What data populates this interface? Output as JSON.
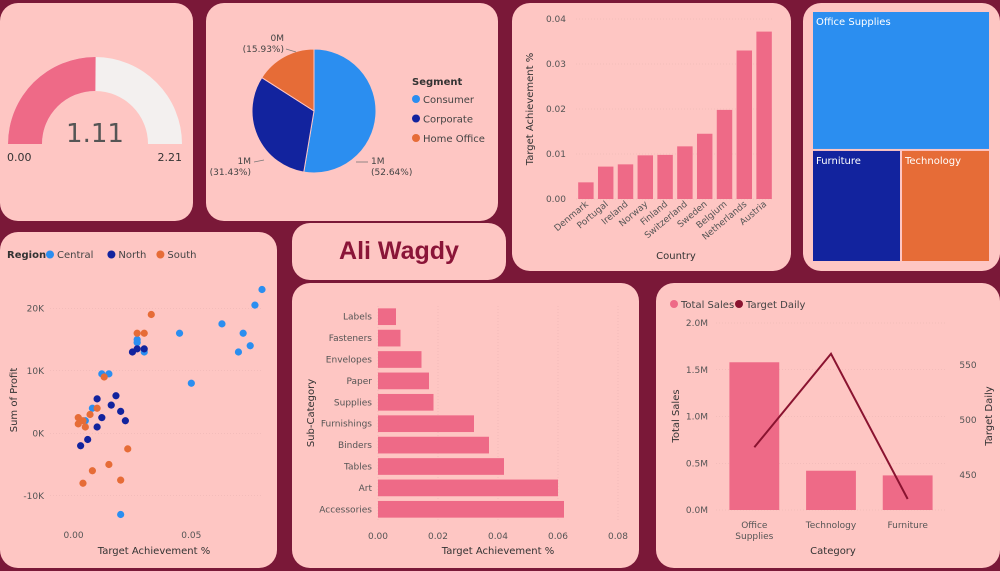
{
  "author": "Ali Wagdy",
  "colors": {
    "bar": "#ee6a87",
    "consumer": "#2b8ef0",
    "corporate": "#12239e",
    "home_office": "#e66c37",
    "line": "#8a1330",
    "central": "#2b8ef0",
    "north": "#12239e",
    "south": "#e66c37"
  },
  "chart_data": [
    {
      "id": "gauge",
      "type": "gauge",
      "value": 1.11,
      "value_label": "1.11",
      "min": 0,
      "max": 2.21,
      "min_label": "0.00",
      "max_label": "2.21"
    },
    {
      "id": "segment_pie",
      "type": "pie",
      "legend_title": "Segment",
      "slices": [
        {
          "name": "Consumer",
          "value": 52.64,
          "label": "1M",
          "pct_label": "(52.64%)"
        },
        {
          "name": "Corporate",
          "value": 31.43,
          "label": "1M",
          "pct_label": "(31.43%)"
        },
        {
          "name": "Home Office",
          "value": 15.93,
          "label": "0M",
          "pct_label": "(15.93%)"
        }
      ]
    },
    {
      "id": "country_bar",
      "type": "bar",
      "xlabel": "Country",
      "ylabel": "Target Achievement %",
      "ylim": [
        0,
        0.04
      ],
      "yticks": [
        "0.00",
        "0.01",
        "0.02",
        "0.03",
        "0.04"
      ],
      "categories": [
        "Denmark",
        "Portugal",
        "Ireland",
        "Norway",
        "Finland",
        "Switzerland",
        "Sweden",
        "Belgium",
        "Netherlands",
        "Austria"
      ],
      "values": [
        0.0037,
        0.0072,
        0.0077,
        0.0097,
        0.0098,
        0.0117,
        0.0145,
        0.0198,
        0.033,
        0.0372
      ]
    },
    {
      "id": "treemap",
      "type": "treemap",
      "items": [
        {
          "name": "Office Supplies",
          "value": 55
        },
        {
          "name": "Furniture",
          "value": 22.5
        },
        {
          "name": "Technology",
          "value": 22.5
        }
      ]
    },
    {
      "id": "region_scatter",
      "type": "scatter",
      "xlabel": "Target Achievement %",
      "ylabel": "Sum of Profit",
      "legend_title": "Region",
      "xlim": [
        -0.01,
        0.08
      ],
      "ylim": [
        -15000,
        25000
      ],
      "xticks": [
        "0.00",
        "0.05"
      ],
      "yticks": [
        "-10K",
        "0K",
        "10K",
        "20K"
      ],
      "series": [
        {
          "name": "Central",
          "points": [
            [
              0.005,
              2000
            ],
            [
              0.008,
              4000
            ],
            [
              0.012,
              9500
            ],
            [
              0.015,
              9500
            ],
            [
              0.027,
              14500
            ],
            [
              0.027,
              15000
            ],
            [
              0.03,
              13000
            ],
            [
              0.045,
              16000
            ],
            [
              0.05,
              8000
            ],
            [
              0.063,
              17500
            ],
            [
              0.07,
              13000
            ],
            [
              0.072,
              16000
            ],
            [
              0.075,
              14000
            ],
            [
              0.077,
              20500
            ],
            [
              0.08,
              23000
            ],
            [
              0.02,
              -13000
            ]
          ]
        },
        {
          "name": "North",
          "points": [
            [
              0.003,
              -2000
            ],
            [
              0.006,
              -1000
            ],
            [
              0.01,
              1000
            ],
            [
              0.012,
              2500
            ],
            [
              0.016,
              4500
            ],
            [
              0.02,
              3500
            ],
            [
              0.022,
              2000
            ],
            [
              0.025,
              13000
            ],
            [
              0.027,
              13500
            ],
            [
              0.03,
              13500
            ],
            [
              0.018,
              6000
            ],
            [
              0.01,
              5500
            ]
          ]
        },
        {
          "name": "South",
          "points": [
            [
              0.002,
              1500
            ],
            [
              0.004,
              2000
            ],
            [
              0.005,
              1000
            ],
            [
              0.007,
              3000
            ],
            [
              0.01,
              4000
            ],
            [
              0.008,
              -6000
            ],
            [
              0.004,
              -8000
            ],
            [
              0.015,
              -5000
            ],
            [
              0.013,
              9000
            ],
            [
              0.02,
              -7500
            ],
            [
              0.023,
              -2500
            ],
            [
              0.027,
              16000
            ],
            [
              0.03,
              16000
            ],
            [
              0.033,
              19000
            ],
            [
              0.002,
              2500
            ]
          ]
        }
      ]
    },
    {
      "id": "subcategory_bar",
      "type": "bar",
      "orientation": "horizontal",
      "xlabel": "Target Achievement %",
      "ylabel": "Sub-Category",
      "xlim": [
        0,
        0.08
      ],
      "xticks": [
        "0.00",
        "0.02",
        "0.04",
        "0.06",
        "0.08"
      ],
      "categories": [
        "Labels",
        "Fasteners",
        "Envelopes",
        "Paper",
        "Supplies",
        "Furnishings",
        "Binders",
        "Tables",
        "Art",
        "Accessories"
      ],
      "values": [
        0.006,
        0.0075,
        0.0145,
        0.017,
        0.0185,
        0.032,
        0.037,
        0.042,
        0.06,
        0.062
      ]
    },
    {
      "id": "category_combo",
      "type": "bar+line",
      "xlabel": "Category",
      "ylabel": "Total Sales",
      "y2label": "Target Daily",
      "legend": [
        "Total Sales",
        "Target Daily"
      ],
      "categories": [
        "Office Supplies",
        "Technology",
        "Furniture"
      ],
      "bar_values": [
        1580000,
        420000,
        370000
      ],
      "line_values": [
        475,
        560,
        428
      ],
      "ylim": [
        0,
        2000000
      ],
      "y2lim": [
        418,
        588
      ],
      "yticks": [
        "0.0M",
        "0.5M",
        "1.0M",
        "1.5M",
        "2.0M"
      ],
      "y2ticks": [
        "450",
        "500",
        "550"
      ]
    }
  ]
}
